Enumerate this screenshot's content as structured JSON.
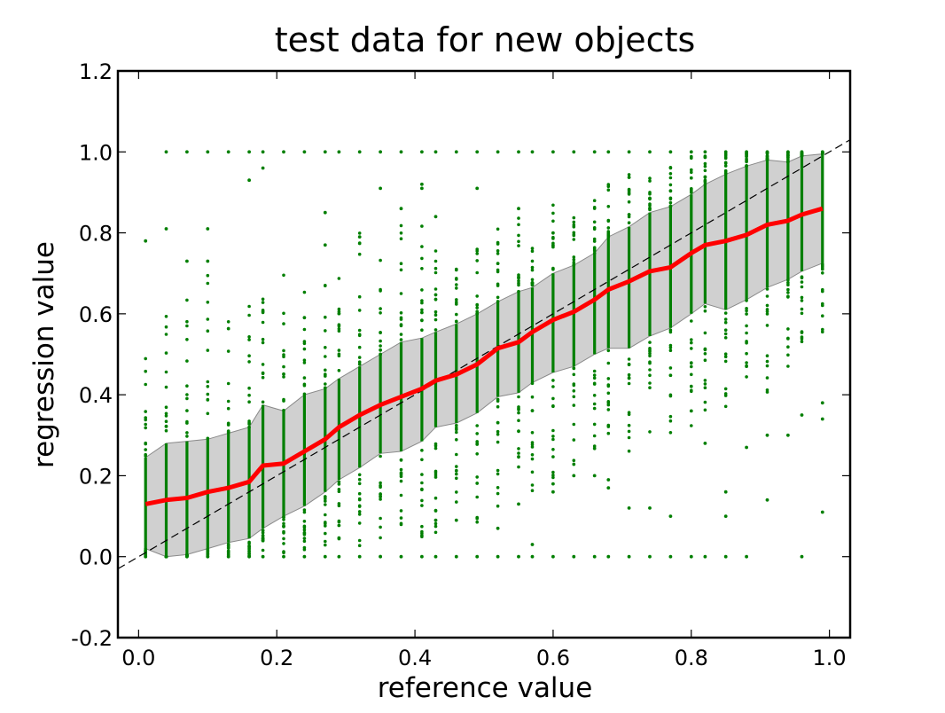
{
  "chart_data": {
    "type": "scatter",
    "title": "test data for new objects",
    "xlabel": "reference value",
    "ylabel": "regression value",
    "xlim": [
      -0.03,
      1.03
    ],
    "ylim": [
      -0.2,
      1.2
    ],
    "xticks": [
      "0.0",
      "0.2",
      "0.4",
      "0.6",
      "0.8",
      "1.0"
    ],
    "yticks": [
      "-0.2",
      "0.0",
      "0.2",
      "0.4",
      "0.6",
      "0.8",
      "1.0",
      "1.2"
    ],
    "grid": false,
    "colors": {
      "points": "#007f00",
      "mean_line": "#ff0000",
      "band": "#c0c0c0",
      "diagonal": "#000000"
    },
    "x_bins": [
      0.01,
      0.04,
      0.07,
      0.1,
      0.13,
      0.16,
      0.18,
      0.21,
      0.24,
      0.27,
      0.29,
      0.32,
      0.35,
      0.38,
      0.41,
      0.43,
      0.46,
      0.49,
      0.52,
      0.55,
      0.57,
      0.6,
      0.63,
      0.66,
      0.68,
      0.71,
      0.74,
      0.77,
      0.8,
      0.82,
      0.85,
      0.88,
      0.91,
      0.94,
      0.96,
      0.99
    ],
    "series": [
      {
        "kind": "line",
        "values": [
          0.13,
          0.14,
          0.145,
          0.16,
          0.17,
          0.185,
          0.225,
          0.23,
          0.26,
          0.29,
          0.32,
          0.35,
          0.375,
          0.395,
          0.415,
          0.435,
          0.45,
          0.475,
          0.515,
          0.53,
          0.555,
          0.585,
          0.605,
          0.635,
          0.66,
          0.68,
          0.705,
          0.715,
          0.75,
          0.77,
          0.78,
          0.795,
          0.82,
          0.83,
          0.845,
          0.86
        ]
      },
      {
        "kind": "band_upper",
        "values": [
          0.245,
          0.28,
          0.285,
          0.29,
          0.305,
          0.32,
          0.375,
          0.36,
          0.4,
          0.415,
          0.44,
          0.47,
          0.5,
          0.53,
          0.54,
          0.555,
          0.575,
          0.6,
          0.63,
          0.655,
          0.665,
          0.7,
          0.72,
          0.75,
          0.79,
          0.815,
          0.85,
          0.865,
          0.895,
          0.92,
          0.945,
          0.965,
          0.98,
          0.975,
          0.99,
          0.995
        ]
      },
      {
        "kind": "band_lower",
        "values": [
          0.02,
          0.0,
          0.005,
          0.02,
          0.035,
          0.045,
          0.07,
          0.1,
          0.125,
          0.16,
          0.19,
          0.22,
          0.255,
          0.26,
          0.285,
          0.32,
          0.33,
          0.355,
          0.395,
          0.405,
          0.43,
          0.455,
          0.47,
          0.5,
          0.515,
          0.515,
          0.545,
          0.565,
          0.6,
          0.625,
          0.61,
          0.635,
          0.665,
          0.685,
          0.705,
          0.725
        ]
      },
      {
        "kind": "scatter",
        "strips_min": [
          0.0,
          0.0,
          0.0,
          0.0,
          0.0,
          0.0,
          0.0,
          0.0,
          0.0,
          0.0,
          0.0,
          0.0,
          0.0,
          0.07,
          0.0,
          0.06,
          0.09,
          0.08,
          0.1,
          0.12,
          0.13,
          0.15,
          0.17,
          0.2,
          0.22,
          0.24,
          0.25,
          0.28,
          0.3,
          0.32,
          0.35,
          0.38,
          0.4,
          0.45,
          0.5,
          0.55
        ],
        "strips_max": [
          0.5,
          0.6,
          0.65,
          0.7,
          0.64,
          0.65,
          0.64,
          0.7,
          0.69,
          0.69,
          0.7,
          0.81,
          0.78,
          0.82,
          0.84,
          0.8,
          0.76,
          0.76,
          0.84,
          0.84,
          0.8,
          0.88,
          0.84,
          0.9,
          0.93,
          0.95,
          0.97,
          0.97,
          0.99,
          1.0,
          1.0,
          1.0,
          1.0,
          1.0,
          1.0,
          1.0
        ],
        "outliers": [
          [
            0.01,
            0.78
          ],
          [
            0.04,
            0.81
          ],
          [
            0.1,
            0.81
          ],
          [
            0.07,
            0.73
          ],
          [
            0.1,
            0.73
          ],
          [
            0.18,
            0.96
          ],
          [
            0.16,
            0.93
          ],
          [
            0.27,
            0.85
          ],
          [
            0.27,
            0.77
          ],
          [
            0.32,
            0.79
          ],
          [
            0.35,
            0.91
          ],
          [
            0.38,
            0.86
          ],
          [
            0.43,
            0.84
          ],
          [
            0.49,
            0.91
          ],
          [
            0.41,
            0.92
          ],
          [
            0.41,
            0.91
          ],
          [
            0.55,
            0.86
          ],
          [
            0.57,
            0.03
          ],
          [
            0.6,
            0.16
          ],
          [
            0.63,
            0.2
          ],
          [
            0.66,
            0.2
          ],
          [
            0.68,
            0.19
          ],
          [
            0.68,
            0.17
          ],
          [
            0.71,
            0.12
          ],
          [
            0.74,
            0.12
          ],
          [
            0.77,
            0.1
          ],
          [
            0.8,
            0.36
          ],
          [
            0.82,
            0.28
          ],
          [
            0.85,
            0.16
          ],
          [
            0.85,
            0.1
          ],
          [
            0.88,
            0.27
          ],
          [
            0.91,
            0.14
          ],
          [
            0.91,
            0.3
          ],
          [
            0.94,
            0.3
          ],
          [
            0.99,
            0.11
          ],
          [
            0.99,
            0.34
          ],
          [
            0.99,
            0.38
          ],
          [
            0.96,
            0.35
          ],
          [
            0.52,
            0.07
          ],
          [
            0.55,
            0.13
          ],
          [
            0.6,
            0.18
          ],
          [
            0.46,
            0.09
          ],
          [
            0.43,
            0.09
          ]
        ],
        "top_row": [
          0.04,
          0.07,
          0.1,
          0.13,
          0.16,
          0.18,
          0.21,
          0.24,
          0.27,
          0.29,
          0.32,
          0.35,
          0.38,
          0.41,
          0.43,
          0.46,
          0.49,
          0.52,
          0.55,
          0.57,
          0.6,
          0.63,
          0.66,
          0.68,
          0.71,
          0.74,
          0.77,
          0.8,
          0.82,
          0.85,
          0.88,
          0.91,
          0.94,
          0.96,
          0.99
        ],
        "bottom_row": [
          0.01,
          0.04,
          0.07,
          0.1,
          0.13,
          0.16,
          0.18,
          0.21,
          0.24,
          0.27,
          0.29,
          0.32,
          0.35,
          0.38,
          0.41,
          0.43,
          0.46,
          0.49,
          0.52,
          0.55,
          0.57,
          0.6,
          0.63,
          0.66,
          0.68,
          0.71,
          0.74,
          0.77,
          0.8,
          0.82,
          0.85,
          0.88,
          0.96
        ]
      },
      {
        "kind": "reference_diagonal",
        "x": [
          -0.03,
          1.03
        ],
        "y": [
          -0.03,
          1.03
        ]
      }
    ]
  }
}
